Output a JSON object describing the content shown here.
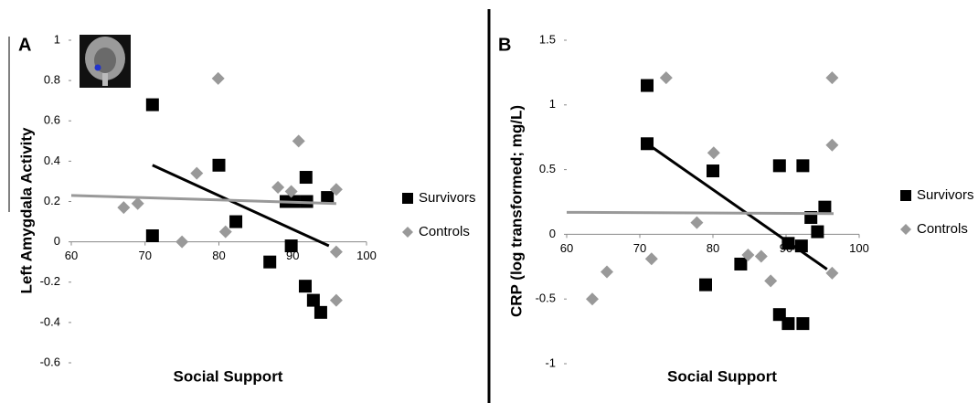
{
  "chart_data": [
    {
      "type": "scatter",
      "panel_label": "A",
      "y_label": "Left Amygdala Activity",
      "x_label": "Social Support",
      "xlim": [
        60,
        100
      ],
      "ylim": [
        -0.6,
        1
      ],
      "xticks": [
        60,
        70,
        80,
        90,
        100
      ],
      "yticks": [
        -0.6,
        -0.4,
        -0.2,
        0,
        0.2,
        0.4,
        0.6,
        0.8,
        1
      ],
      "series": [
        {
          "name": "Survivors",
          "color": "#000000",
          "marker": "square",
          "x": [
            71,
            71,
            80,
            82.3,
            86.9,
            89.8,
            89.1,
            90.2,
            91.9,
            91.8,
            94.7,
            91.7,
            92.8,
            93.8
          ],
          "values": [
            0.68,
            0.03,
            0.38,
            0.1,
            -0.1,
            -0.02,
            0.2,
            0.2,
            0.2,
            0.32,
            0.22,
            -0.22,
            -0.29,
            -0.35
          ],
          "trend": {
            "x": [
              71,
              94.9
            ],
            "values": [
              0.38,
              -0.02
            ]
          }
        },
        {
          "name": "Controls",
          "color": "#999999",
          "marker": "diamond",
          "x": [
            67.1,
            69,
            75,
            77,
            79.9,
            80.9,
            88,
            89.8,
            90.8,
            95.9,
            95.9,
            95.9
          ],
          "values": [
            0.17,
            0.19,
            0,
            0.34,
            0.81,
            0.05,
            0.27,
            0.25,
            0.5,
            0.26,
            -0.05,
            -0.29
          ],
          "trend": {
            "x": [
              60,
              95.9
            ],
            "values": [
              0.23,
              0.19
            ]
          }
        }
      ]
    },
    {
      "type": "scatter",
      "panel_label": "B",
      "y_label": "CRP (log transformed; mg/L)",
      "x_label": "Social Support",
      "xlim": [
        60,
        100
      ],
      "ylim": [
        -1,
        1.5
      ],
      "xticks": [
        60,
        70,
        80,
        90,
        100
      ],
      "yticks": [
        -1,
        -0.5,
        0,
        0.5,
        1,
        1.5
      ],
      "series": [
        {
          "name": "Survivors",
          "color": "#000000",
          "marker": "square",
          "x": [
            71,
            71,
            80,
            79,
            83.8,
            89.1,
            90.3,
            92.3,
            92.1,
            93.4,
            94.3,
            95.3,
            89.1,
            90.3,
            92.3
          ],
          "values": [
            1.15,
            0.7,
            0.49,
            -0.39,
            -0.23,
            0.53,
            -0.07,
            0.53,
            -0.09,
            0.13,
            0.02,
            0.21,
            -0.62,
            -0.69,
            -0.69
          ],
          "trend": {
            "x": [
              71,
              95.6
            ],
            "values": [
              0.7,
              -0.27
            ]
          }
        },
        {
          "name": "Controls",
          "color": "#999999",
          "marker": "diamond",
          "x": [
            63.5,
            65.5,
            71.6,
            73.6,
            80.1,
            77.8,
            84.8,
            86.6,
            87.9,
            96.3,
            96.3,
            96.3
          ],
          "values": [
            -0.5,
            -0.29,
            -0.19,
            1.21,
            0.63,
            0.09,
            -0.16,
            -0.17,
            -0.36,
            1.21,
            0.69,
            -0.3
          ],
          "trend": {
            "x": [
              60,
              96.5
            ],
            "values": [
              0.17,
              0.16
            ]
          }
        }
      ]
    }
  ]
}
